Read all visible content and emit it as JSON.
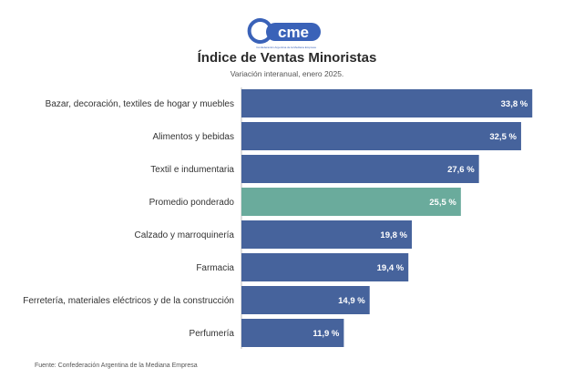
{
  "logo": {
    "text": "cme",
    "tagline": "Confederación Argentina de la Mediana Empresa"
  },
  "header": {
    "title": "Índice de Ventas Minoristas",
    "subtitle": "Variación interanual, enero 2025."
  },
  "footer": {
    "source": "Fuente: Confederación Argentina de la Mediana Empresa"
  },
  "colors": {
    "bar": "#46639c",
    "highlight": "#6aab9c",
    "label": "#ffffff",
    "category": "#333333",
    "axis": "#bfbfbf"
  },
  "chart_data": {
    "type": "bar",
    "orientation": "horizontal",
    "title": "Índice de Ventas Minoristas",
    "subtitle": "Variación interanual, enero 2025.",
    "categories": [
      "Bazar, decoración, textiles de hogar y muebles",
      "Alimentos y bebidas",
      "Textil e indumentaria",
      "Promedio ponderado",
      "Calzado y marroquinería",
      "Farmacia",
      "Ferretería, materiales eléctricos y de la construcción",
      "Perfumería"
    ],
    "values": [
      33.8,
      32.5,
      27.6,
      25.5,
      19.8,
      19.4,
      14.9,
      11.9
    ],
    "value_labels": [
      "33,8 %",
      "32,5 %",
      "27,6 %",
      "25,5 %",
      "19,8 %",
      "19,4 %",
      "14,9 %",
      "11,9 %"
    ],
    "highlight_index": 3,
    "xlim": [
      0,
      36
    ],
    "grid": false,
    "legend": "none"
  }
}
